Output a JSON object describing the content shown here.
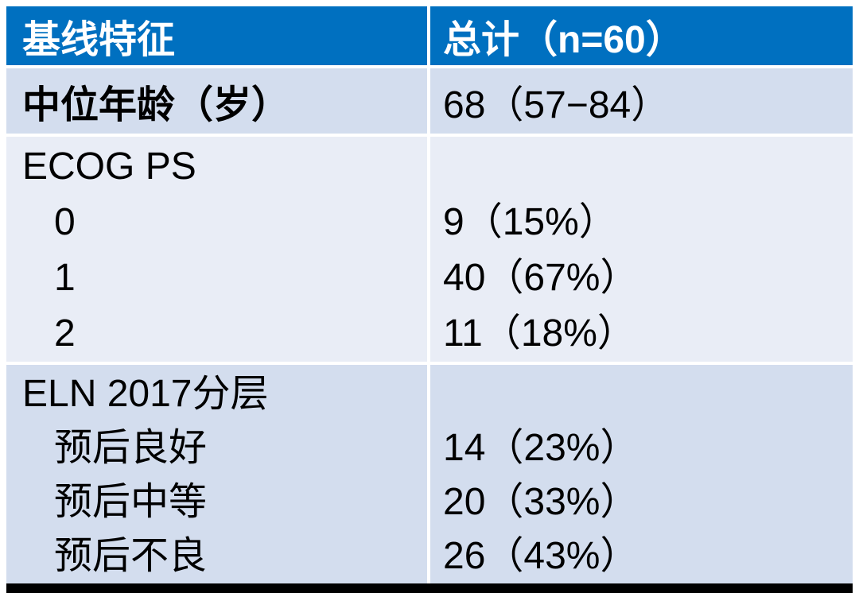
{
  "colors": {
    "header_bg": "#0070C0",
    "header_text": "#FFFFFF",
    "band_dark": "#D3DDEE",
    "band_light": "#E9EDF6",
    "body_text": "#000000",
    "bottom_bar": "#000000",
    "separator": "#FFFFFF"
  },
  "table": {
    "header": {
      "characteristic": "基线特征",
      "total": "总计（n=60）"
    },
    "rows": [
      {
        "type": "simple",
        "label": "中位年龄（岁）",
        "value": "68（57−84）"
      },
      {
        "type": "group",
        "label": "ECOG PS",
        "items": [
          {
            "label": "0",
            "value": "9（15%）"
          },
          {
            "label": "1",
            "value": "40（67%）"
          },
          {
            "label": "2",
            "value": "11（18%）"
          }
        ]
      },
      {
        "type": "group",
        "label": "ELN 2017分层",
        "items": [
          {
            "label": "预后良好",
            "value": "14（23%）"
          },
          {
            "label": "预后中等",
            "value": "20（33%）"
          },
          {
            "label": "预后不良",
            "value": "26（43%）"
          }
        ]
      }
    ]
  }
}
